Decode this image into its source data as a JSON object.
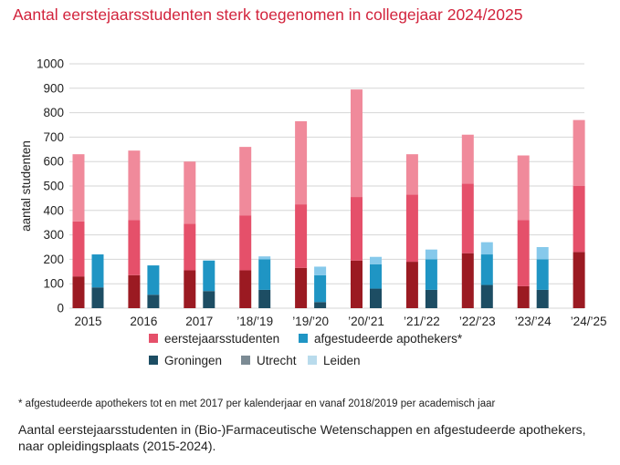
{
  "title": "Aantal eerstejaarsstudenten sterk toegenomen in collegejaar 2024/2025",
  "footnote": "* afgestudeerde apothekers tot en met 2017 per kalenderjaar en vanaf 2018/2019 per academisch jaar",
  "caption": "Aantal eerstejaarsstudenten in (Bio-)Farmaceutische Wetenschappen en afgestudeerde apothekers, naar opleidingsplaats (2015-2024).",
  "chart_data": {
    "type": "bar",
    "ylabel": "aantal studenten",
    "xlabel": "",
    "ylim": [
      0,
      1000
    ],
    "yticks": [
      0,
      100,
      200,
      300,
      400,
      500,
      600,
      700,
      800,
      900,
      1000
    ],
    "grid": true,
    "categories": [
      "2015",
      "2016",
      "2017",
      "’18/’19",
      "’19/’20",
      "’20/’21",
      "’21/’22",
      "’22/’23",
      "’23/’24",
      "’24/’25"
    ],
    "stacks": [
      {
        "name": "eerstejaarsstudenten",
        "series": [
          {
            "name": "Groningen",
            "color": "#9b1a22",
            "values": [
              130,
              135,
              155,
              155,
              165,
              195,
              190,
              225,
              90,
              230
            ]
          },
          {
            "name": "Utrecht",
            "color": "#e5506a",
            "values": [
              225,
              225,
              190,
              225,
              260,
              260,
              275,
              285,
              270,
              270
            ]
          },
          {
            "name": "Leiden",
            "color": "#f08a9b",
            "values": [
              275,
              285,
              255,
              280,
              340,
              440,
              165,
              200,
              265,
              270
            ]
          }
        ]
      },
      {
        "name": "afgestudeerde apothekers*",
        "series": [
          {
            "name": "Groningen",
            "color": "#1d4d63",
            "values": [
              85,
              55,
              70,
              75,
              25,
              80,
              75,
              95,
              75,
              0
            ]
          },
          {
            "name": "Utrecht",
            "color": "#1f95c4",
            "values": [
              135,
              120,
              125,
              125,
              110,
              100,
              125,
              125,
              125,
              0
            ]
          },
          {
            "name": "Leiden",
            "color": "#86c9eb",
            "values": [
              0,
              0,
              0,
              12,
              35,
              30,
              40,
              50,
              50,
              0
            ]
          }
        ]
      }
    ],
    "legend": [
      {
        "label": "eerstejaarsstudenten",
        "color": "#e5506a"
      },
      {
        "label": "afgestudeerde apothekers*",
        "color": "#1f95c4"
      },
      {
        "label": "Groningen",
        "color": "#1d4d63"
      },
      {
        "label": "Utrecht",
        "color": "#7c8b94"
      },
      {
        "label": "Leiden",
        "color": "#b9dbec"
      }
    ],
    "legend_position": "bottom"
  }
}
